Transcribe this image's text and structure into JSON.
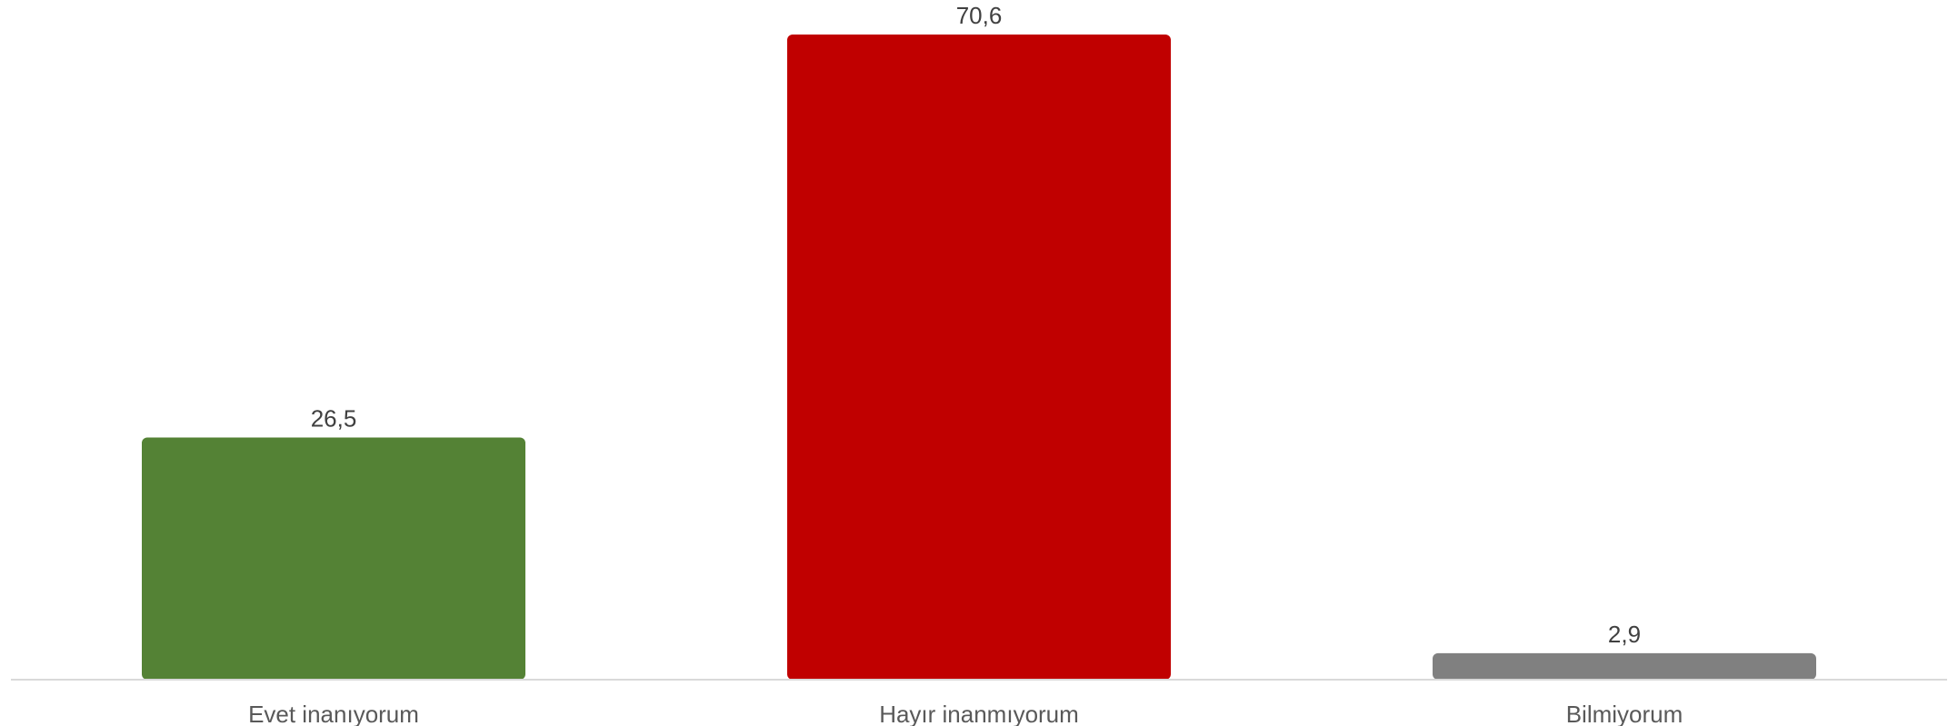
{
  "chart_data": {
    "type": "bar",
    "categories": [
      "Evet inanıyorum",
      "Hayır inanmıyorum",
      "Bilmiyorum"
    ],
    "values": [
      26.5,
      70.6,
      2.9
    ],
    "data_labels": [
      "26,5",
      "70,6",
      "2,9"
    ],
    "colors": [
      "#548235",
      "#c00000",
      "#808080"
    ],
    "axis_color": "#d9d9d9",
    "ylim": [
      0,
      70.6
    ],
    "grid": false,
    "legend": "none"
  }
}
